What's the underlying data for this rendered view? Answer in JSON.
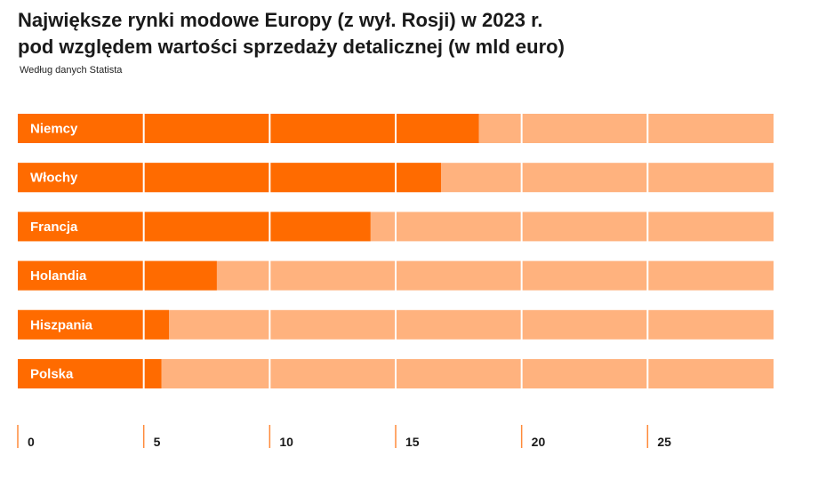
{
  "header": {
    "title_line1": "Największe rynki modowe Europy (z wył. Rosji) w 2023 r.",
    "title_line2": "pod względem wartości sprzedaży detalicznej (w mld euro)",
    "subtitle": "Według danych Statista"
  },
  "colors": {
    "bar": "#ff6b00",
    "track": "#ffb27e",
    "gridline": "#ff8a3a",
    "text_on_bar": "#ffffff"
  },
  "chart_data": {
    "type": "bar",
    "orientation": "horizontal",
    "categories": [
      "Niemcy",
      "Włochy",
      "Francja",
      "Holandia",
      "Hiszpania",
      "Polska"
    ],
    "values": [
      18.3,
      16.8,
      14.0,
      7.9,
      6.0,
      5.7
    ],
    "xlim": [
      0,
      30
    ],
    "xticks": [
      0,
      5,
      10,
      15,
      20,
      25
    ],
    "tick_labels": [
      "0",
      "5",
      "10",
      "15",
      "20",
      "25"
    ],
    "grid": true
  }
}
